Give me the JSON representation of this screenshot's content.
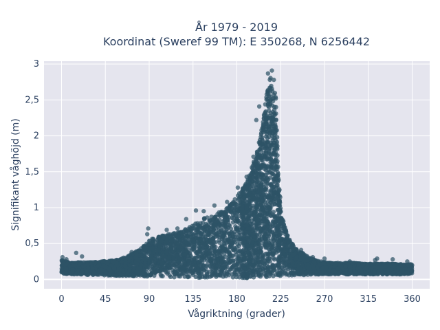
{
  "chart_data": {
    "type": "scatter",
    "title": [
      "År 1979 - 2019",
      "Koordinat (Sweref 99 TM): E 350268, N 6256442"
    ],
    "xlabel": "Vågriktning (grader)",
    "ylabel": "Signifikant våghöjd (m)",
    "xlim": [
      -18,
      378
    ],
    "ylim": [
      -0.13,
      3.04
    ],
    "xticks": [
      0,
      45,
      90,
      135,
      180,
      225,
      270,
      315,
      360
    ],
    "xtick_labels": [
      "0",
      "45",
      "90",
      "135",
      "180",
      "225",
      "270",
      "315",
      "360"
    ],
    "yticks": [
      0,
      0.5,
      1,
      1.5,
      2,
      2.5,
      3
    ],
    "ytick_labels": [
      "0",
      "0,5",
      "1",
      "1,5",
      "2",
      "2,5",
      "3"
    ],
    "grid": true,
    "background_color": "#e5e5ee",
    "marker_color": "#2e5367",
    "envelope": {
      "x": [
        0,
        10,
        20,
        30,
        40,
        50,
        60,
        70,
        80,
        90,
        100,
        110,
        120,
        130,
        140,
        150,
        160,
        170,
        180,
        190,
        200,
        205,
        210,
        215,
        220,
        223,
        226,
        230,
        235,
        240,
        250,
        260,
        270,
        280,
        290,
        300,
        310,
        320,
        330,
        340,
        350,
        360
      ],
      "y_max": [
        0.27,
        0.23,
        0.24,
        0.24,
        0.25,
        0.26,
        0.28,
        0.34,
        0.42,
        0.55,
        0.6,
        0.63,
        0.66,
        0.72,
        0.8,
        0.88,
        0.93,
        1.0,
        1.15,
        1.35,
        1.75,
        2.05,
        2.55,
        2.86,
        2.55,
        1.4,
        0.9,
        0.7,
        0.55,
        0.45,
        0.34,
        0.27,
        0.24,
        0.23,
        0.23,
        0.23,
        0.22,
        0.22,
        0.22,
        0.22,
        0.21,
        0.21
      ],
      "y_min": [
        0.08,
        0.07,
        0.06,
        0.06,
        0.06,
        0.05,
        0.05,
        0.05,
        0.04,
        0.04,
        0.04,
        0.03,
        0.03,
        0.03,
        0.02,
        0.02,
        0.02,
        0.02,
        0.02,
        0.02,
        0.03,
        0.03,
        0.03,
        0.04,
        0.04,
        0.04,
        0.04,
        0.05,
        0.05,
        0.06,
        0.06,
        0.07,
        0.07,
        0.07,
        0.07,
        0.07,
        0.07,
        0.07,
        0.07,
        0.07,
        0.07,
        0.08
      ]
    },
    "outliers": [
      {
        "x": 1,
        "y": 0.31
      },
      {
        "x": 5,
        "y": 0.28
      },
      {
        "x": 15,
        "y": 0.37
      },
      {
        "x": 21,
        "y": 0.32
      },
      {
        "x": 72,
        "y": 0.38
      },
      {
        "x": 88,
        "y": 0.63
      },
      {
        "x": 89,
        "y": 0.71
      },
      {
        "x": 108,
        "y": 0.69
      },
      {
        "x": 119,
        "y": 0.71
      },
      {
        "x": 128,
        "y": 0.84
      },
      {
        "x": 138,
        "y": 0.96
      },
      {
        "x": 146,
        "y": 0.95
      },
      {
        "x": 157,
        "y": 1.03
      },
      {
        "x": 170,
        "y": 1.08
      },
      {
        "x": 181,
        "y": 1.28
      },
      {
        "x": 190,
        "y": 1.43
      },
      {
        "x": 197,
        "y": 1.71
      },
      {
        "x": 200,
        "y": 2.22
      },
      {
        "x": 203,
        "y": 2.41
      },
      {
        "x": 205,
        "y": 2.02
      },
      {
        "x": 212,
        "y": 2.87
      },
      {
        "x": 216,
        "y": 2.91
      },
      {
        "x": 218,
        "y": 2.78
      },
      {
        "x": 220,
        "y": 2.52
      },
      {
        "x": 226,
        "y": 0.84
      },
      {
        "x": 233,
        "y": 0.52
      },
      {
        "x": 246,
        "y": 0.41
      },
      {
        "x": 258,
        "y": 0.31
      },
      {
        "x": 270,
        "y": 0.29
      },
      {
        "x": 296,
        "y": 0.25
      },
      {
        "x": 322,
        "y": 0.27
      },
      {
        "x": 324,
        "y": 0.29
      },
      {
        "x": 340,
        "y": 0.28
      },
      {
        "x": 355,
        "y": 0.25
      },
      {
        "x": 358,
        "y": 0.21
      }
    ],
    "density": {
      "points": 5200,
      "seed": 42
    }
  }
}
